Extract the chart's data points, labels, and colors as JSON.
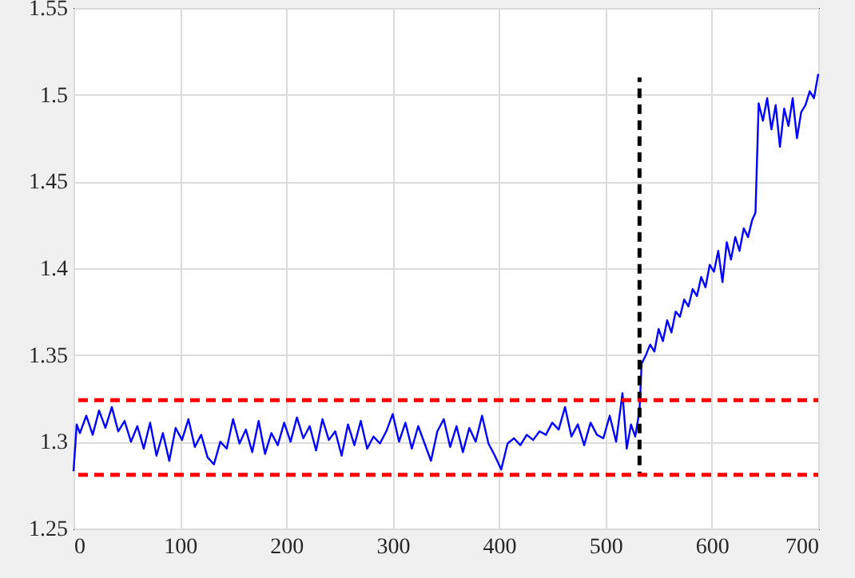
{
  "chart_data": {
    "type": "line",
    "xlim": [
      0,
      700
    ],
    "ylim": [
      1.25,
      1.55
    ],
    "xticks": [
      0,
      100,
      200,
      300,
      400,
      500,
      600,
      700
    ],
    "yticks": [
      1.25,
      1.3,
      1.35,
      1.4,
      1.45,
      1.5,
      1.55
    ],
    "grid": true,
    "series": [
      {
        "color": "#0000ff",
        "line_style": "solid",
        "x": [
          0,
          3,
          6,
          12,
          18,
          24,
          30,
          36,
          42,
          48,
          54,
          60,
          66,
          72,
          78,
          84,
          90,
          96,
          102,
          108,
          114,
          120,
          126,
          132,
          138,
          144,
          150,
          156,
          162,
          168,
          174,
          180,
          186,
          192,
          198,
          204,
          210,
          216,
          222,
          228,
          234,
          240,
          246,
          252,
          258,
          264,
          270,
          276,
          282,
          288,
          294,
          300,
          306,
          312,
          318,
          324,
          330,
          336,
          342,
          348,
          354,
          360,
          366,
          372,
          378,
          384,
          390,
          396,
          402,
          408,
          414,
          420,
          426,
          432,
          438,
          444,
          450,
          456,
          462,
          468,
          474,
          480,
          486,
          492,
          498,
          504,
          510,
          516,
          520,
          524,
          528,
          532,
          534,
          538,
          542,
          546,
          550,
          554,
          558,
          562,
          566,
          570,
          574,
          578,
          582,
          586,
          590,
          594,
          598,
          602,
          606,
          610,
          614,
          618,
          622,
          626,
          630,
          634,
          638,
          641,
          644,
          648,
          652,
          656,
          660,
          664,
          668,
          672,
          676,
          680,
          684,
          688,
          692,
          696,
          700
        ],
        "values": [
          1.283,
          1.31,
          1.305,
          1.315,
          1.304,
          1.318,
          1.308,
          1.32,
          1.306,
          1.312,
          1.3,
          1.309,
          1.296,
          1.311,
          1.292,
          1.305,
          1.289,
          1.308,
          1.301,
          1.313,
          1.297,
          1.304,
          1.291,
          1.287,
          1.3,
          1.296,
          1.313,
          1.299,
          1.307,
          1.294,
          1.312,
          1.293,
          1.305,
          1.298,
          1.311,
          1.3,
          1.314,
          1.302,
          1.309,
          1.295,
          1.313,
          1.301,
          1.306,
          1.292,
          1.31,
          1.298,
          1.312,
          1.296,
          1.303,
          1.299,
          1.306,
          1.316,
          1.3,
          1.311,
          1.296,
          1.309,
          1.299,
          1.289,
          1.306,
          1.313,
          1.297,
          1.309,
          1.294,
          1.308,
          1.3,
          1.315,
          1.299,
          1.292,
          1.284,
          1.299,
          1.302,
          1.298,
          1.304,
          1.301,
          1.306,
          1.304,
          1.311,
          1.307,
          1.32,
          1.303,
          1.31,
          1.298,
          1.311,
          1.304,
          1.302,
          1.315,
          1.3,
          1.328,
          1.296,
          1.31,
          1.303,
          1.318,
          1.345,
          1.35,
          1.356,
          1.352,
          1.365,
          1.358,
          1.37,
          1.363,
          1.375,
          1.372,
          1.382,
          1.378,
          1.388,
          1.384,
          1.395,
          1.389,
          1.402,
          1.398,
          1.41,
          1.392,
          1.415,
          1.405,
          1.418,
          1.41,
          1.423,
          1.418,
          1.428,
          1.432,
          1.495,
          1.485,
          1.498,
          1.48,
          1.494,
          1.47,
          1.492,
          1.482,
          1.498,
          1.475,
          1.49,
          1.494,
          1.502,
          1.498,
          1.512
        ]
      },
      {
        "color": "#000000",
        "line_style": "dashed",
        "x": [
          532,
          532
        ],
        "values": [
          1.28,
          1.51
        ]
      }
    ],
    "ref_lines": [
      {
        "axis": "y",
        "value": 1.324,
        "color": "#ff0000",
        "line_style": "dashed"
      },
      {
        "axis": "y",
        "value": 1.281,
        "color": "#ff0000",
        "line_style": "dashed"
      }
    ]
  }
}
